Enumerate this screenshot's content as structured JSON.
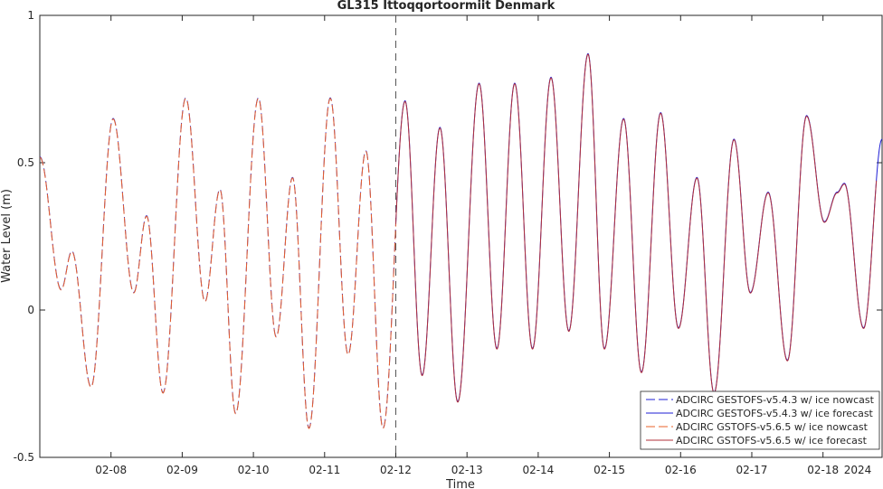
{
  "chart_data": {
    "type": "line",
    "title": "GL315 Ittoqqortoormiit Denmark",
    "xlabel": "Time",
    "ylabel": "Water Level (m)",
    "x_year_label": "2024",
    "xlim_days": [
      7.0,
      18.83
    ],
    "ylim": [
      -0.5,
      1.0
    ],
    "yticks": [
      -0.5,
      0,
      0.5,
      1
    ],
    "ytick_labels": [
      "-0.5",
      "0",
      "0.5",
      "1"
    ],
    "xticks": [
      8,
      9,
      10,
      11,
      12,
      13,
      14,
      15,
      16,
      17,
      18
    ],
    "xtick_labels": [
      "02-08",
      "02-09",
      "02-10",
      "02-11",
      "02-12",
      "02-13",
      "02-14",
      "02-15",
      "02-16",
      "02-17",
      "02-18"
    ],
    "nowcast_forecast_split_day": 12.0,
    "grid": false,
    "legend_position": "bottom-right",
    "series": [
      {
        "name": "ADCIRC GESTOFS-v5.4.3 w/ ice nowcast",
        "color": "#1f1fd6",
        "dash": "dashed",
        "range": [
          7.0,
          12.0
        ]
      },
      {
        "name": "ADCIRC GESTOFS-v5.4.3 w/ ice forecast",
        "color": "#1f1fd6",
        "dash": "solid",
        "range": [
          12.0,
          18.83
        ]
      },
      {
        "name": "ADCIRC GSTOFS-v5.6.5 w/ ice nowcast",
        "color": "#e8602a",
        "dash": "dashed",
        "range": [
          7.0,
          12.0
        ]
      },
      {
        "name": "ADCIRC GSTOFS-v5.6.5 w/ ice forecast",
        "color": "#b0303a",
        "dash": "solid",
        "range": [
          12.0,
          18.75
        ]
      }
    ],
    "extrema": [
      {
        "day": 7.0,
        "value": 0.52
      },
      {
        "day": 7.3,
        "value": 0.07
      },
      {
        "day": 7.45,
        "value": 0.2
      },
      {
        "day": 7.72,
        "value": -0.26
      },
      {
        "day": 8.03,
        "value": 0.65
      },
      {
        "day": 8.32,
        "value": 0.06
      },
      {
        "day": 8.5,
        "value": 0.32
      },
      {
        "day": 8.73,
        "value": -0.28
      },
      {
        "day": 9.05,
        "value": 0.72
      },
      {
        "day": 9.32,
        "value": 0.03
      },
      {
        "day": 9.53,
        "value": 0.41
      },
      {
        "day": 9.75,
        "value": -0.35
      },
      {
        "day": 10.07,
        "value": 0.72
      },
      {
        "day": 10.32,
        "value": -0.09
      },
      {
        "day": 10.55,
        "value": 0.45
      },
      {
        "day": 10.78,
        "value": -0.4
      },
      {
        "day": 11.08,
        "value": 0.72
      },
      {
        "day": 11.33,
        "value": -0.15
      },
      {
        "day": 11.58,
        "value": 0.54
      },
      {
        "day": 11.82,
        "value": -0.4
      },
      {
        "day": 12.13,
        "value": 0.71
      },
      {
        "day": 12.37,
        "value": -0.22
      },
      {
        "day": 12.62,
        "value": 0.62
      },
      {
        "day": 12.87,
        "value": -0.31
      },
      {
        "day": 13.17,
        "value": 0.77
      },
      {
        "day": 13.42,
        "value": -0.13
      },
      {
        "day": 13.67,
        "value": 0.77
      },
      {
        "day": 13.92,
        "value": -0.13
      },
      {
        "day": 14.18,
        "value": 0.79
      },
      {
        "day": 14.43,
        "value": -0.07
      },
      {
        "day": 14.7,
        "value": 0.87
      },
      {
        "day": 14.93,
        "value": -0.13
      },
      {
        "day": 15.2,
        "value": 0.65
      },
      {
        "day": 15.45,
        "value": -0.21
      },
      {
        "day": 15.72,
        "value": 0.67
      },
      {
        "day": 15.97,
        "value": -0.06
      },
      {
        "day": 16.23,
        "value": 0.45
      },
      {
        "day": 16.47,
        "value": -0.28
      },
      {
        "day": 16.75,
        "value": 0.58
      },
      {
        "day": 16.98,
        "value": 0.06
      },
      {
        "day": 17.23,
        "value": 0.4
      },
      {
        "day": 17.5,
        "value": -0.17
      },
      {
        "day": 17.77,
        "value": 0.66
      },
      {
        "day": 18.02,
        "value": 0.3
      },
      {
        "day": 18.2,
        "value": 0.4
      },
      {
        "day": 18.3,
        "value": 0.43
      },
      {
        "day": 18.57,
        "value": -0.06
      },
      {
        "day": 18.83,
        "value": 0.58
      }
    ]
  }
}
